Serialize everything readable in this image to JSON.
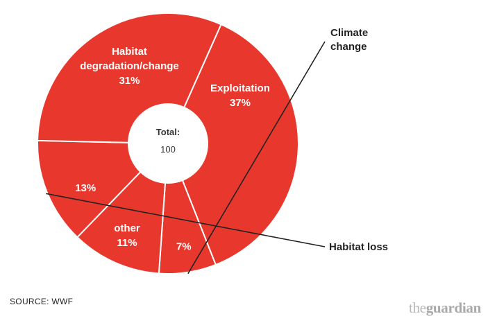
{
  "chart_data": {
    "type": "pie",
    "style": "donut",
    "slices": [
      {
        "name": "Exploitation",
        "value": 37,
        "label_lines": [
          "Exploitation"
        ],
        "value_label": "37%"
      },
      {
        "name": "Climate change",
        "value": 7,
        "label_lines": [],
        "value_label": "7%"
      },
      {
        "name": "other",
        "value": 11,
        "label_lines": [
          "other"
        ],
        "value_label": "11%"
      },
      {
        "name": "Habitat loss",
        "value": 13,
        "label_lines": [],
        "value_label": "13%"
      },
      {
        "name": "Habitat degradation/change",
        "value": 31,
        "label_lines": [
          "Habitat",
          "degradation/change"
        ],
        "value_label": "31%"
      }
    ],
    "center": {
      "title": "Total:",
      "value": "100"
    },
    "callouts": [
      {
        "slice": "Climate change",
        "lines": [
          "Climate",
          "change"
        ]
      },
      {
        "slice": "Habitat loss",
        "lines": [
          "Habitat loss"
        ]
      }
    ],
    "colors": {
      "slice": "#e8382d",
      "separator": "#ffffff",
      "hole": "#ffffff"
    }
  },
  "footer": {
    "source": "SOURCE: WWF",
    "brand_the": "the",
    "brand_name": "guardian"
  }
}
